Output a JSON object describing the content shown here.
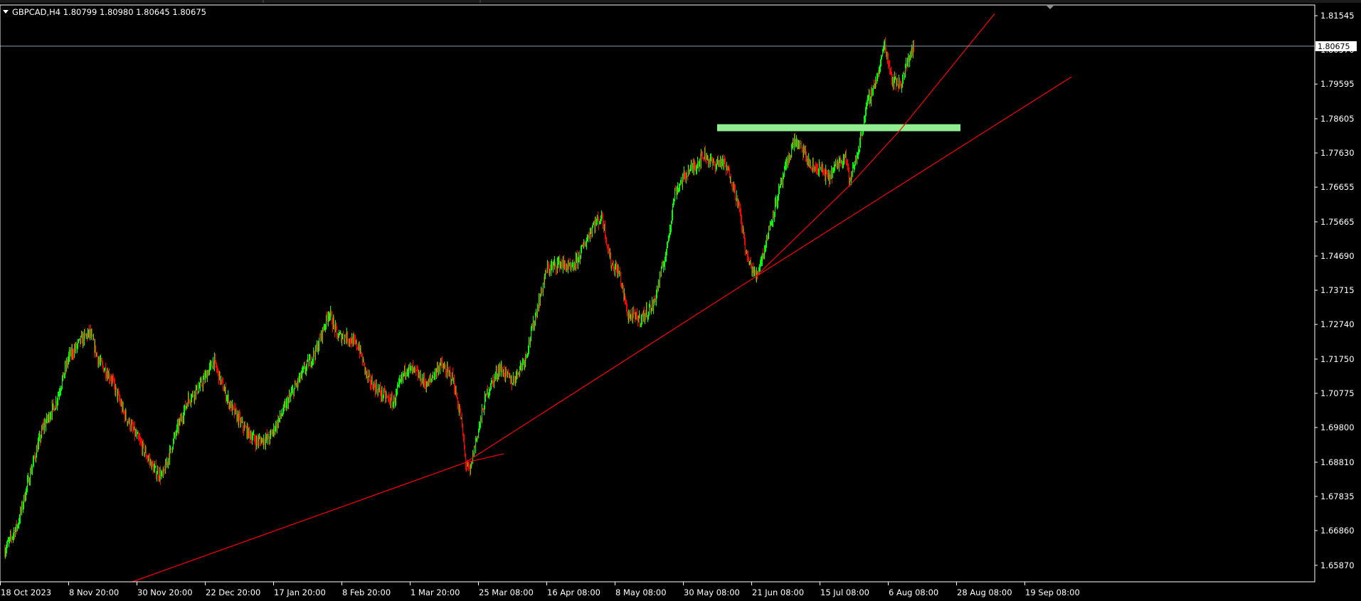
{
  "header": {
    "title": "GBPCAD,H4  1.80799 1.80980 1.80645 1.80675"
  },
  "price_tag": "1.80675",
  "chart_data": {
    "type": "candlestick",
    "symbol": "GBPCAD",
    "timeframe": "H4",
    "ohlc_last": {
      "open": 1.80799,
      "high": 1.8098,
      "low": 1.80645,
      "close": 1.80675
    },
    "ylim": [
      1.654,
      1.8185
    ],
    "y_ticks": [
      "1.81545",
      "1.80570",
      "1.79595",
      "1.78605",
      "1.77630",
      "1.76655",
      "1.75665",
      "1.74690",
      "1.73715",
      "1.72740",
      "1.71750",
      "1.70775",
      "1.69800",
      "1.68810",
      "1.67835",
      "1.66860",
      "1.65870"
    ],
    "x_ticks": [
      "18 Oct 2023",
      "8 Nov 20:00",
      "30 Nov 20:00",
      "22 Dec 20:00",
      "17 Jan 20:00",
      "8 Feb 20:00",
      "1 Mar 20:00",
      "25 Mar 08:00",
      "16 Apr 08:00",
      "8 May 08:00",
      "30 May 08:00",
      "21 Jun 08:00",
      "15 Jul 08:00",
      "6 Aug 08:00",
      "28 Aug 08:00",
      "19 Sep 08:00"
    ],
    "price_path": [
      [
        0,
        1.663
      ],
      [
        3,
        1.67
      ],
      [
        6,
        1.685
      ],
      [
        9,
        1.698
      ],
      [
        12,
        1.705
      ],
      [
        15,
        1.718
      ],
      [
        18,
        1.723
      ],
      [
        20,
        1.725
      ],
      [
        22,
        1.717
      ],
      [
        25,
        1.712
      ],
      [
        28,
        1.702
      ],
      [
        32,
        1.693
      ],
      [
        35,
        1.686
      ],
      [
        37,
        1.684
      ],
      [
        40,
        1.696
      ],
      [
        43,
        1.706
      ],
      [
        46,
        1.71
      ],
      [
        49,
        1.717
      ],
      [
        51,
        1.71
      ],
      [
        53,
        1.704
      ],
      [
        56,
        1.698
      ],
      [
        59,
        1.694
      ],
      [
        62,
        1.695
      ],
      [
        65,
        1.702
      ],
      [
        67,
        1.707
      ],
      [
        70,
        1.714
      ],
      [
        73,
        1.72
      ],
      [
        76,
        1.731
      ],
      [
        78,
        1.724
      ],
      [
        80,
        1.724
      ],
      [
        83,
        1.721
      ],
      [
        85,
        1.712
      ],
      [
        88,
        1.708
      ],
      [
        91,
        1.705
      ],
      [
        94,
        1.715
      ],
      [
        96,
        1.714
      ],
      [
        99,
        1.71
      ],
      [
        102,
        1.716
      ],
      [
        105,
        1.712
      ],
      [
        107,
        1.7
      ],
      [
        108,
        1.688
      ],
      [
        109,
        1.685
      ],
      [
        110,
        1.692
      ],
      [
        113,
        1.708
      ],
      [
        116,
        1.715
      ],
      [
        119,
        1.711
      ],
      [
        122,
        1.718
      ],
      [
        125,
        1.733
      ],
      [
        127,
        1.743
      ],
      [
        130,
        1.745
      ],
      [
        133,
        1.743
      ],
      [
        135,
        1.748
      ],
      [
        138,
        1.756
      ],
      [
        140,
        1.758
      ],
      [
        142,
        1.745
      ],
      [
        144,
        1.742
      ],
      [
        146,
        1.73
      ],
      [
        149,
        1.729
      ],
      [
        152,
        1.733
      ],
      [
        155,
        1.748
      ],
      [
        157,
        1.765
      ],
      [
        160,
        1.771
      ],
      [
        162,
        1.773
      ],
      [
        164,
        1.776
      ],
      [
        166,
        1.773
      ],
      [
        168,
        1.774
      ],
      [
        170,
        1.77
      ],
      [
        172,
        1.761
      ],
      [
        174,
        1.746
      ],
      [
        176,
        1.741
      ],
      [
        178,
        1.749
      ],
      [
        180,
        1.759
      ],
      [
        183,
        1.772
      ],
      [
        185,
        1.78
      ],
      [
        187,
        1.777
      ],
      [
        189,
        1.772
      ],
      [
        191,
        1.772
      ],
      [
        193,
        1.769
      ],
      [
        195,
        1.773
      ],
      [
        197,
        1.776
      ],
      [
        198,
        1.768
      ],
      [
        200,
        1.777
      ],
      [
        202,
        1.79
      ],
      [
        205,
        1.8
      ],
      [
        206,
        1.808
      ],
      [
        208,
        1.797
      ],
      [
        210,
        1.796
      ],
      [
        212,
        1.804
      ],
      [
        213,
        1.8068
      ]
    ],
    "trendlines": [
      {
        "color": "#ff0000",
        "points": [
          [
            1.654,
            30
          ],
          [
            1.688,
            108
          ],
          [
            1.741,
            176
          ],
          [
            1.798,
            250
          ]
        ]
      },
      {
        "color": "#ff0000",
        "points": [
          [
            1.688,
            108
          ],
          [
            1.6905,
            117
          ]
        ]
      },
      {
        "color": "#ff0000",
        "points": [
          [
            1.741,
            176
          ],
          [
            1.767,
            198
          ],
          [
            1.783,
            210
          ],
          [
            1.816,
            232
          ]
        ]
      }
    ],
    "zones": [
      {
        "color": "#90ee90",
        "price_top": 1.7845,
        "price_bottom": 1.7825,
        "from_bar": 167,
        "to_bar": 224
      }
    ],
    "up_color": "#00ff00",
    "down_color": "#ff0000",
    "background": "#000000",
    "axis_color": "#ffffff",
    "grid": false
  }
}
